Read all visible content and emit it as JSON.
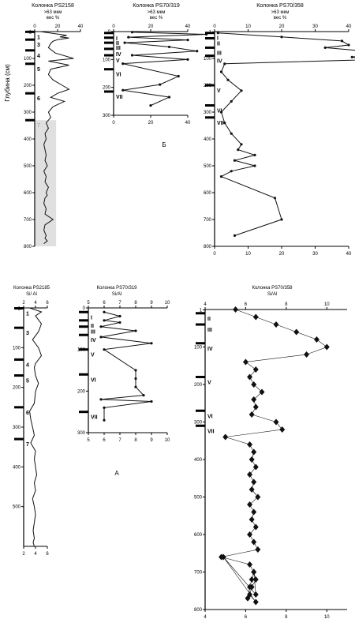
{
  "charts": {
    "p1": {
      "title": "Колонка PS2158",
      "subtitle": ">63 мкм",
      "unit": "вес %"
    },
    "p2": {
      "title": "Колонка PS70/319",
      "subtitle": ">63 мкм",
      "unit": "вес %"
    },
    "p3": {
      "title": "Колонка PS70/358",
      "subtitle": ">63 мкм",
      "unit": "вес %"
    },
    "p4": {
      "title": "Колонка PS2185",
      "subtitle": "Si/ Al"
    },
    "p5": {
      "title": "Колонка PS70/319",
      "subtitle": "Si/Al"
    },
    "p6": {
      "title": "Колонка PS70/358",
      "subtitle": "Si/Al"
    }
  },
  "labels": {
    "depth_axis": "Глубина (см)",
    "panel_b": "Б",
    "panel_a": "А"
  },
  "colors": {
    "line": "#111111",
    "shade": "#d8d8d8",
    "grid": "#000000"
  },
  "chart_data": [
    {
      "id": "p1",
      "type": "line",
      "xlim": [
        0,
        40
      ],
      "xticks": [
        0,
        20,
        40
      ],
      "ylim": [
        0,
        800
      ],
      "yticks": [
        1,
        100,
        200,
        300,
        400,
        500,
        600,
        700,
        800
      ],
      "units": [
        {
          "label": "1",
          "depth": 1
        },
        {
          "label": "3",
          "depth": 30
        },
        {
          "label": "4",
          "depth": 70
        },
        {
          "label": "5",
          "depth": 120
        },
        {
          "label": "6",
          "depth": 230
        },
        {
          "label": "7",
          "depth": 330
        }
      ],
      "x": [
        5,
        18,
        28,
        22,
        30,
        20,
        16,
        14,
        12,
        18,
        34,
        12,
        30,
        14,
        12,
        16,
        24,
        30,
        20,
        14,
        26,
        16,
        12,
        14,
        10,
        12,
        9,
        10,
        8,
        9,
        10,
        9,
        11,
        8,
        10,
        9,
        12,
        10,
        11,
        9,
        8,
        10,
        9,
        16,
        9,
        8,
        10,
        9,
        11,
        8
      ],
      "y": [
        0,
        8,
        14,
        20,
        24,
        30,
        36,
        44,
        60,
        80,
        100,
        110,
        125,
        140,
        160,
        180,
        200,
        215,
        230,
        245,
        260,
        280,
        300,
        320,
        340,
        360,
        380,
        400,
        420,
        440,
        460,
        480,
        500,
        520,
        540,
        560,
        580,
        600,
        610,
        620,
        640,
        660,
        680,
        700,
        720,
        740,
        760,
        770,
        780,
        790
      ]
    },
    {
      "id": "p2",
      "type": "line",
      "xlim": [
        0,
        40
      ],
      "xticks": [
        0,
        20,
        40
      ],
      "ylim": [
        0,
        300
      ],
      "yticks": [
        0,
        100,
        200,
        300
      ],
      "units": [
        {
          "label": "I",
          "depth": 5
        },
        {
          "label": "II",
          "depth": 22
        },
        {
          "label": "III",
          "depth": 40
        },
        {
          "label": "IV",
          "depth": 62
        },
        {
          "label": "V",
          "depth": 85
        },
        {
          "label": "VI",
          "depth": 135
        },
        {
          "label": "VII",
          "depth": 215
        }
      ],
      "x": [
        10,
        50,
        8,
        40,
        6,
        30,
        45,
        10,
        40,
        5,
        35,
        25,
        5,
        30,
        20
      ],
      "y": [
        2,
        10,
        20,
        30,
        40,
        55,
        70,
        85,
        100,
        115,
        160,
        190,
        210,
        235,
        265
      ]
    },
    {
      "id": "p3",
      "type": "line",
      "xlim": [
        0,
        40
      ],
      "xticks": [
        0,
        10,
        20,
        30,
        40
      ],
      "ylim": [
        0,
        800
      ],
      "yticks": [
        1,
        100,
        200,
        300,
        400,
        500,
        600,
        700,
        800
      ],
      "units": [
        {
          "label": "I",
          "depth": 5
        },
        {
          "label": "II",
          "depth": 25
        },
        {
          "label": "III",
          "depth": 60
        },
        {
          "label": "IV",
          "depth": 90
        },
        {
          "label": "V",
          "depth": 200
        },
        {
          "label": "VI",
          "depth": 275
        },
        {
          "label": "VII",
          "depth": 320
        }
      ],
      "x": [
        1,
        20,
        38,
        40,
        33,
        47,
        46,
        41,
        45,
        3,
        2,
        4,
        8,
        5,
        2,
        3,
        5,
        8,
        7,
        12,
        6,
        12,
        5,
        2,
        18,
        20,
        6
      ],
      "y": [
        5,
        20,
        35,
        50,
        60,
        75,
        85,
        95,
        105,
        120,
        150,
        180,
        220,
        260,
        300,
        340,
        380,
        420,
        440,
        460,
        480,
        500,
        520,
        540,
        620,
        700,
        760
      ]
    },
    {
      "id": "p4",
      "type": "line",
      "xlim": [
        2,
        6
      ],
      "xticks": [
        2,
        4,
        6
      ],
      "ylim": [
        0,
        600
      ],
      "yticks": [
        1,
        100,
        200,
        300,
        400,
        500
      ],
      "units": [
        {
          "label": "1",
          "depth": 1
        },
        {
          "label": "3",
          "depth": 50
        },
        {
          "label": "4",
          "depth": 130
        },
        {
          "label": "5",
          "depth": 170
        },
        {
          "label": "6",
          "depth": 250
        },
        {
          "label": "7",
          "depth": 330
        }
      ],
      "x": [
        3,
        5,
        4,
        5,
        4.5,
        3.5,
        4.5,
        5,
        4,
        3.8,
        4,
        4.5,
        4,
        3.8,
        3,
        3.2,
        3.5,
        3.8,
        3.2,
        4,
        3.8,
        4,
        4.2,
        3.8,
        4,
        3.5,
        3.8,
        4,
        3.8,
        3.6,
        3.8,
        3.6,
        3.8
      ],
      "y": [
        0,
        10,
        20,
        40,
        60,
        80,
        100,
        120,
        140,
        150,
        170,
        190,
        210,
        240,
        260,
        280,
        300,
        320,
        340,
        360,
        380,
        400,
        420,
        440,
        460,
        480,
        500,
        520,
        540,
        560,
        580,
        590,
        600
      ]
    },
    {
      "id": "p5",
      "type": "line",
      "xlim": [
        5,
        10
      ],
      "xticks": [
        5,
        6,
        7,
        8,
        9,
        10
      ],
      "ylim": [
        0,
        300
      ],
      "yticks": [
        0,
        100,
        200,
        300
      ],
      "units": [
        {
          "label": "I",
          "depth": 10
        },
        {
          "label": "II",
          "depth": 30
        },
        {
          "label": "III",
          "depth": 45
        },
        {
          "label": "IV",
          "depth": 65
        },
        {
          "label": "V",
          "depth": 100
        },
        {
          "label": "VI",
          "depth": 160
        },
        {
          "label": "VII",
          "depth": 250
        }
      ],
      "x": [
        6,
        7,
        6,
        7,
        5.8,
        8,
        5.8,
        9,
        6,
        8,
        8,
        8,
        8.5,
        5.8,
        9,
        6,
        6
      ],
      "y": [
        10,
        20,
        30,
        35,
        45,
        55,
        70,
        85,
        100,
        150,
        170,
        190,
        210,
        220,
        225,
        240,
        270
      ]
    },
    {
      "id": "p6",
      "type": "scatter",
      "xlim": [
        4,
        11
      ],
      "xticks": [
        4,
        6,
        8,
        10
      ],
      "ylim": [
        0,
        800
      ],
      "yticks": [
        1,
        100,
        200,
        300,
        400,
        500,
        600,
        700,
        800
      ],
      "units": [
        {
          "label": "II",
          "depth": 10
        },
        {
          "label": "III",
          "depth": 40
        },
        {
          "label": "IV",
          "depth": 90
        },
        {
          "label": "V",
          "depth": 180
        },
        {
          "label": "VI",
          "depth": 270
        },
        {
          "label": "VII",
          "depth": 310
        }
      ],
      "x": [
        5.5,
        6.5,
        7.5,
        8.5,
        9.5,
        10,
        9,
        6,
        6.5,
        6.2,
        6.4,
        6.8,
        6.4,
        6.5,
        6.3,
        7.5,
        7.8,
        5,
        6.2,
        6.4,
        6.3,
        6.5,
        6.2,
        6.4,
        6.3,
        6.6,
        6.2,
        6.4,
        6.3,
        6.5,
        6.2,
        6.4,
        6.6,
        4.8,
        6.2,
        6.4,
        6.5,
        6.3,
        6.2,
        6.5,
        4.9,
        6.5,
        6.4,
        6.3,
        6.2,
        6.1
      ],
      "y": [
        0,
        20,
        40,
        60,
        80,
        100,
        120,
        140,
        160,
        180,
        200,
        220,
        240,
        260,
        280,
        300,
        320,
        340,
        360,
        380,
        400,
        420,
        440,
        460,
        480,
        500,
        520,
        540,
        560,
        580,
        600,
        620,
        640,
        660,
        680,
        700,
        720,
        740,
        760,
        780,
        660,
        760,
        700,
        720,
        740,
        770
      ]
    }
  ]
}
